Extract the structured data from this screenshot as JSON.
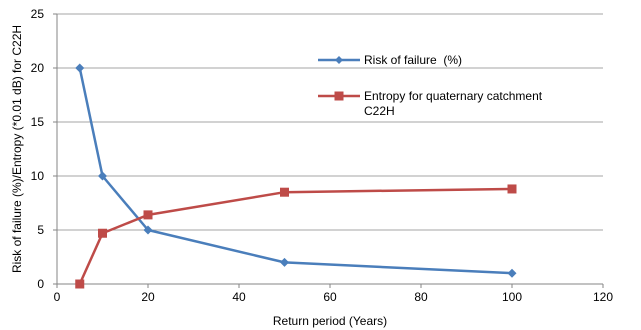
{
  "chart_data": {
    "type": "line",
    "title": "",
    "xlabel": "Return period (Years)",
    "ylabel": "Risk of failure (%)/Entropy (*0.01 dB) for C22H",
    "xlim": [
      0,
      120
    ],
    "ylim": [
      0,
      25
    ],
    "xticks": [
      0,
      20,
      40,
      60,
      80,
      100,
      120
    ],
    "yticks": [
      0,
      5,
      10,
      15,
      20,
      25
    ],
    "grid": "horizontal",
    "legend_position": "right",
    "series": [
      {
        "name": "Risk of failure  (%)",
        "color": "#4a7ebb",
        "marker": "diamond",
        "x": [
          5,
          10,
          20,
          50,
          100
        ],
        "y": [
          20,
          10,
          5,
          2,
          1
        ]
      },
      {
        "name_lines": [
          "Entropy for quaternary catchment",
          "C22H"
        ],
        "color": "#be4b48",
        "marker": "square",
        "x": [
          5,
          10,
          20,
          50,
          100
        ],
        "y": [
          0,
          4.7,
          6.4,
          8.5,
          8.8
        ]
      }
    ]
  }
}
